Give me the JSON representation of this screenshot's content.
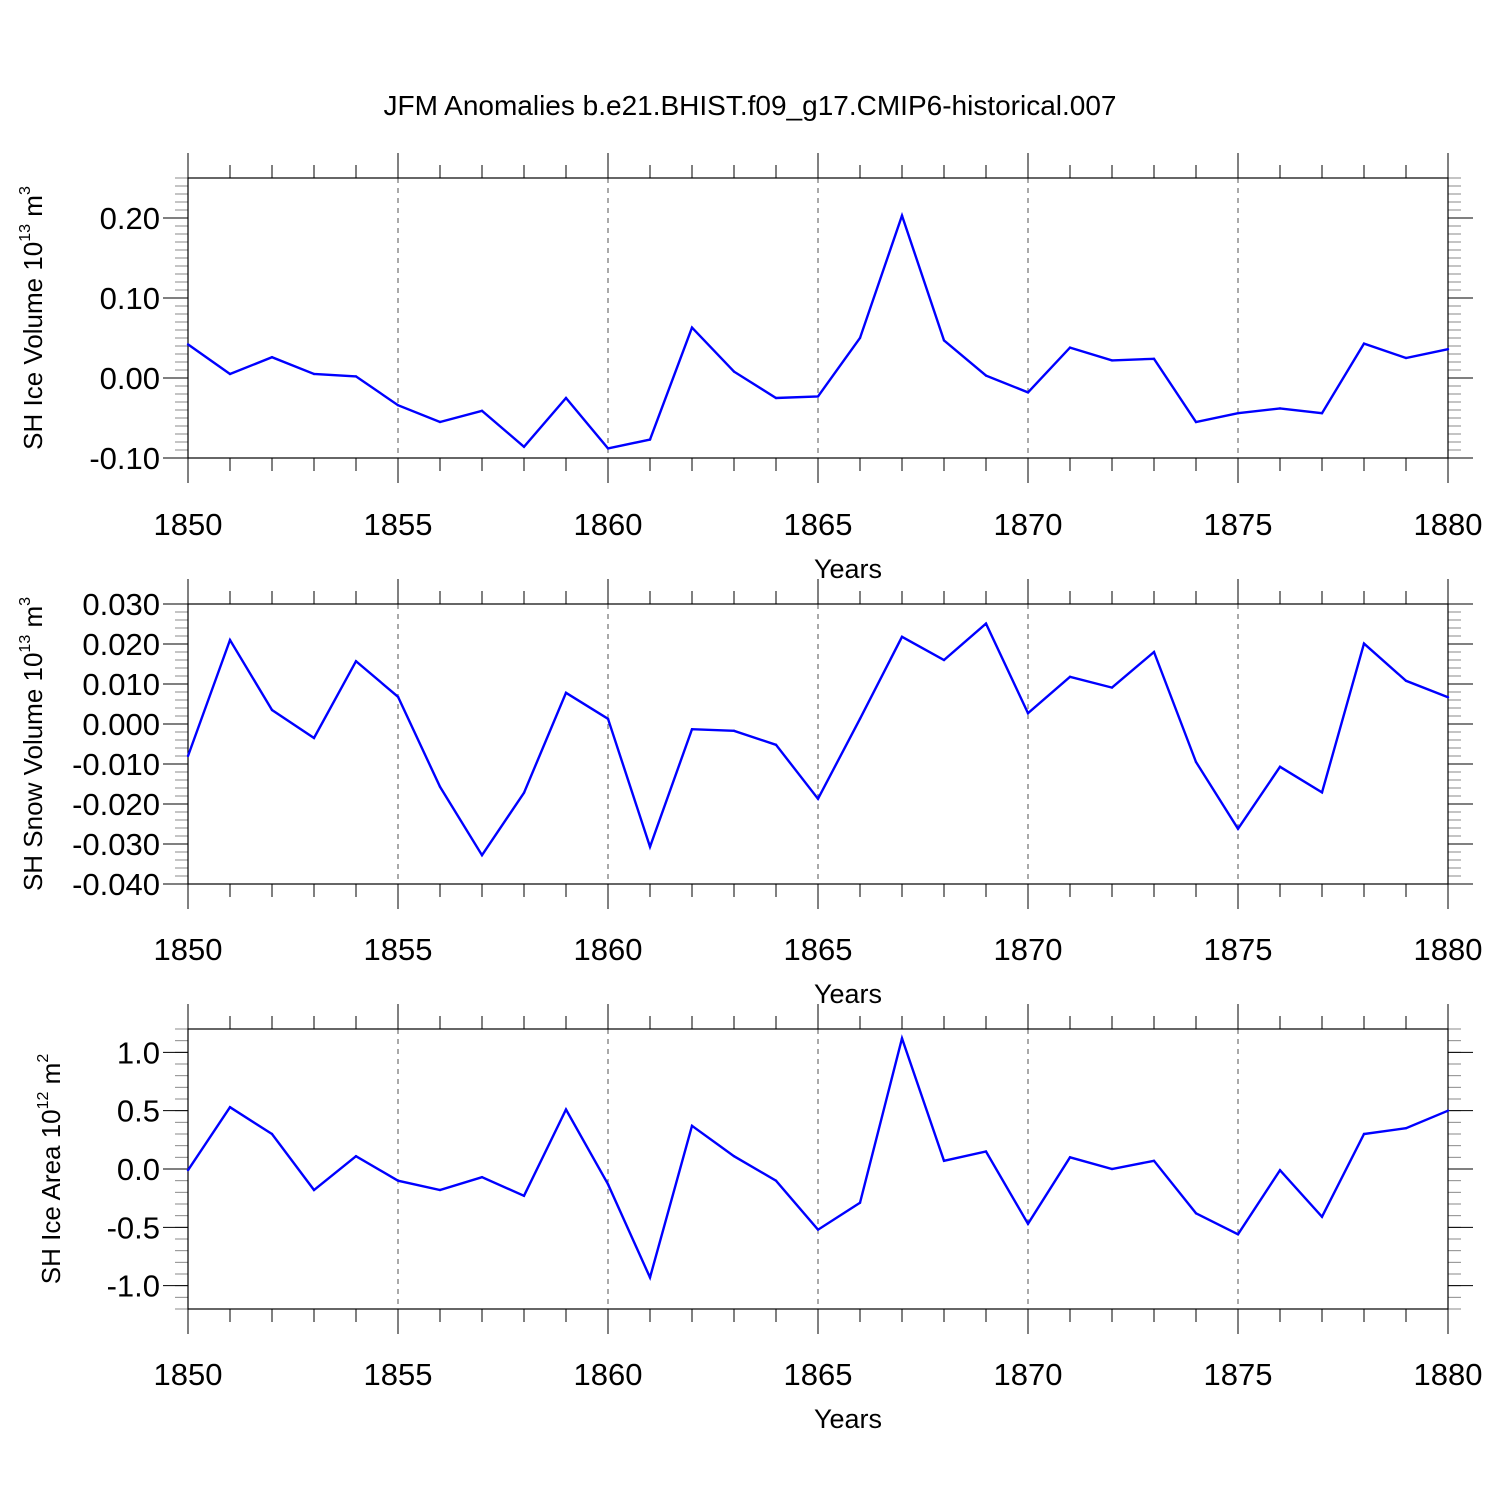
{
  "title": "JFM Anomalies b.e21.BHIST.f09_g17.CMIP6-historical.007",
  "line_color": "#0000ff",
  "chart_data": [
    {
      "type": "line",
      "title": "JFM Anomalies b.e21.BHIST.f09_g17.CMIP6-historical.007",
      "xlabel": "Years",
      "ylabel_text": "SH Ice Volume 10",
      "ylabel_exp": "13",
      "ylabel_unit": " m",
      "ylabel_unit_exp": "3",
      "xlim": [
        1850,
        1880
      ],
      "ylim": [
        -0.1,
        0.25
      ],
      "xticks": [
        "1850",
        "1855",
        "1860",
        "1865",
        "1870",
        "1875",
        "1880"
      ],
      "yticks": [
        "0.20",
        "0.10",
        "0.00",
        "-0.10"
      ],
      "ytick_values": [
        0.2,
        0.1,
        0.0,
        -0.1
      ],
      "grid": "dashed vertical at major x ticks",
      "x": [
        1850,
        1851,
        1852,
        1853,
        1854,
        1855,
        1856,
        1857,
        1858,
        1859,
        1860,
        1861,
        1862,
        1863,
        1864,
        1865,
        1866,
        1867,
        1868,
        1869,
        1870,
        1871,
        1872,
        1873,
        1874,
        1875,
        1876,
        1877,
        1878,
        1879,
        1880
      ],
      "series": [
        {
          "name": "SH Ice Volume",
          "values": [
            0.042,
            0.005,
            0.026,
            0.005,
            0.002,
            -0.034,
            -0.055,
            -0.041,
            -0.086,
            -0.025,
            -0.088,
            -0.077,
            0.063,
            0.008,
            -0.025,
            -0.023,
            0.05,
            0.203,
            0.047,
            0.003,
            -0.018,
            0.038,
            0.022,
            0.024,
            -0.055,
            -0.044,
            -0.038,
            -0.044,
            0.043,
            0.025,
            0.036
          ]
        }
      ]
    },
    {
      "type": "line",
      "xlabel": "Years",
      "ylabel_text": "SH Snow Volume 10",
      "ylabel_exp": "13",
      "ylabel_unit": " m",
      "ylabel_unit_exp": "3",
      "xlim": [
        1850,
        1880
      ],
      "ylim": [
        -0.04,
        0.03
      ],
      "xticks": [
        "1850",
        "1855",
        "1860",
        "1865",
        "1870",
        "1875",
        "1880"
      ],
      "yticks": [
        "0.030",
        "0.020",
        "0.010",
        "0.000",
        "-0.010",
        "-0.020",
        "-0.030",
        "-0.040"
      ],
      "ytick_values": [
        0.03,
        0.02,
        0.01,
        0.0,
        -0.01,
        -0.02,
        -0.03,
        -0.04
      ],
      "grid": "dashed vertical at major x ticks",
      "x": [
        1850,
        1851,
        1852,
        1853,
        1854,
        1855,
        1856,
        1857,
        1858,
        1859,
        1860,
        1861,
        1862,
        1863,
        1864,
        1865,
        1866,
        1867,
        1868,
        1869,
        1870,
        1871,
        1872,
        1873,
        1874,
        1875,
        1876,
        1877,
        1878,
        1879,
        1880
      ],
      "series": [
        {
          "name": "SH Snow Volume",
          "values": [
            -0.008,
            0.021,
            0.0035,
            -0.0035,
            0.0157,
            0.0068,
            -0.0157,
            -0.0328,
            -0.0172,
            0.0078,
            0.0013,
            -0.0307,
            -0.0013,
            -0.0017,
            -0.0052,
            -0.0187,
            0.0013,
            0.0218,
            0.016,
            0.0251,
            0.0027,
            0.0118,
            0.0091,
            0.018,
            -0.0095,
            -0.0262,
            -0.0107,
            -0.0171,
            0.0201,
            0.0108,
            0.0067
          ]
        }
      ]
    },
    {
      "type": "line",
      "xlabel": "Years",
      "ylabel_text": "SH Ice Area 10",
      "ylabel_exp": "12",
      "ylabel_unit": " m",
      "ylabel_unit_exp": "2",
      "xlim": [
        1850,
        1880
      ],
      "ylim": [
        -1.2,
        1.2
      ],
      "xticks": [
        "1850",
        "1855",
        "1860",
        "1865",
        "1870",
        "1875",
        "1880"
      ],
      "yticks": [
        "1.0",
        "0.5",
        "0.0",
        "-0.5",
        "-1.0"
      ],
      "ytick_values": [
        1.0,
        0.5,
        0.0,
        -0.5,
        -1.0
      ],
      "grid": "dashed vertical at major x ticks",
      "x": [
        1850,
        1851,
        1852,
        1853,
        1854,
        1855,
        1856,
        1857,
        1858,
        1859,
        1860,
        1861,
        1862,
        1863,
        1864,
        1865,
        1866,
        1867,
        1868,
        1869,
        1870,
        1871,
        1872,
        1873,
        1874,
        1875,
        1876,
        1877,
        1878,
        1879,
        1880
      ],
      "series": [
        {
          "name": "SH Ice Area",
          "values": [
            -0.01,
            0.53,
            0.3,
            -0.18,
            0.11,
            -0.1,
            -0.18,
            -0.07,
            -0.23,
            0.51,
            -0.13,
            -0.93,
            0.37,
            0.11,
            -0.1,
            -0.52,
            -0.29,
            1.12,
            0.07,
            0.15,
            -0.47,
            0.1,
            0.0,
            0.07,
            -0.38,
            -0.56,
            -0.01,
            -0.41,
            0.3,
            0.35,
            0.5
          ]
        }
      ]
    }
  ]
}
